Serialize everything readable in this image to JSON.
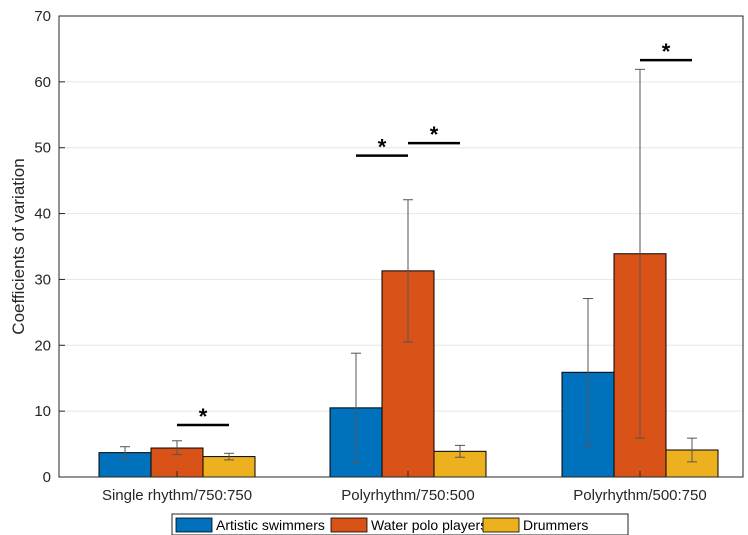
{
  "chart_data": {
    "type": "bar",
    "ylabel": "Coefficients of variation",
    "xlabel": "",
    "ylim": [
      0,
      70
    ],
    "yticks": [
      0,
      10,
      20,
      30,
      40,
      50,
      60,
      70
    ],
    "grid": "horizontal",
    "legend_position": "bottom",
    "categories": [
      "Single rhythm/750:750",
      "Polyrhythm/750:500",
      "Polyrhythm/500:750"
    ],
    "series": [
      {
        "name": "Artistic swimmers",
        "color": "#0072BD",
        "values": [
          3.7,
          10.5,
          15.9
        ],
        "err_low": [
          2.8,
          2.2,
          4.7
        ],
        "err_high": [
          4.6,
          18.8,
          27.1
        ]
      },
      {
        "name": "Water polo players",
        "color": "#D95319",
        "values": [
          4.4,
          31.3,
          33.9
        ],
        "err_low": [
          3.4,
          20.5,
          5.9
        ],
        "err_high": [
          5.5,
          42.1,
          61.9
        ]
      },
      {
        "name": "Drummers",
        "color": "#EDB120",
        "values": [
          3.1,
          3.9,
          4.1
        ],
        "err_low": [
          2.6,
          3.0,
          2.3
        ],
        "err_high": [
          3.6,
          4.8,
          5.9
        ]
      }
    ],
    "significance": [
      {
        "category": 0,
        "from_series": 1,
        "to_series": 2,
        "y": 7.9,
        "label": "*"
      },
      {
        "category": 1,
        "from_series": 0,
        "to_series": 1,
        "y": 48.8,
        "label": "*"
      },
      {
        "category": 1,
        "from_series": 1,
        "to_series": 2,
        "y": 50.7,
        "label": "*"
      },
      {
        "category": 2,
        "from_series": 1,
        "to_series": 2,
        "y": 63.3,
        "label": "*"
      }
    ]
  }
}
